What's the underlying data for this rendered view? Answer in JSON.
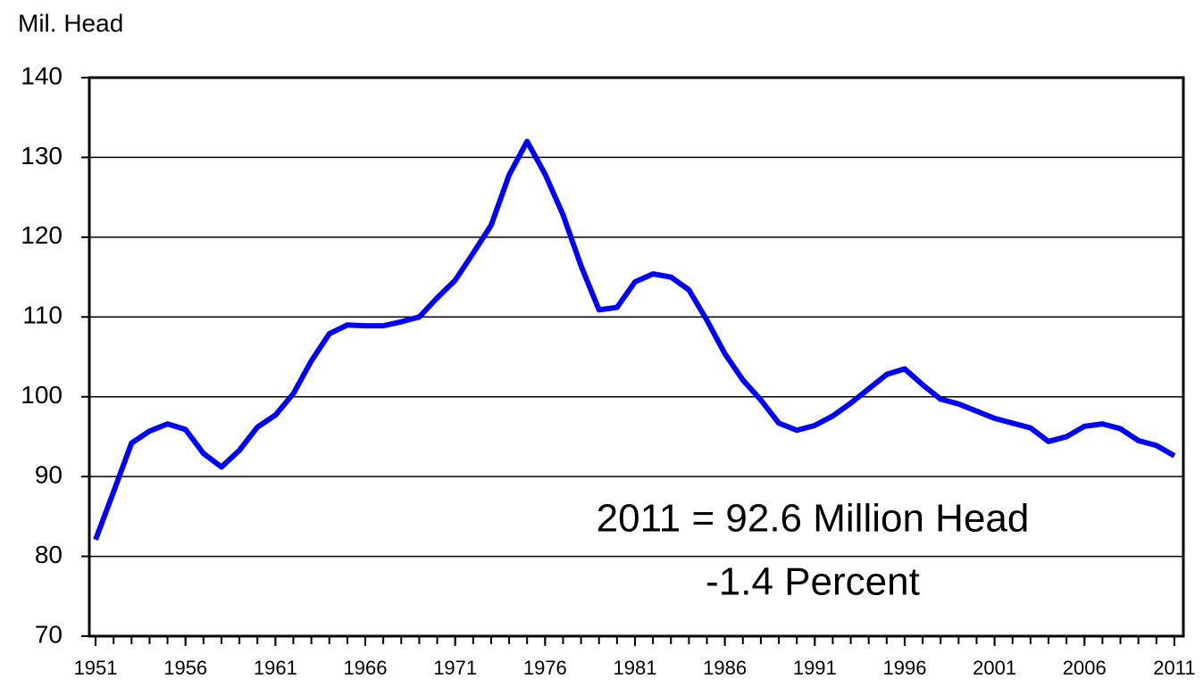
{
  "chart_data": {
    "type": "line",
    "y_label": "Mil. Head",
    "annotations": [
      "2011 = 92.6 Million Head",
      "-1.4 Percent"
    ],
    "x": [
      1951,
      1952,
      1953,
      1954,
      1955,
      1956,
      1957,
      1958,
      1959,
      1960,
      1961,
      1962,
      1963,
      1964,
      1965,
      1966,
      1967,
      1968,
      1969,
      1970,
      1971,
      1972,
      1973,
      1974,
      1975,
      1976,
      1977,
      1978,
      1979,
      1980,
      1981,
      1982,
      1983,
      1984,
      1985,
      1986,
      1987,
      1988,
      1989,
      1990,
      1991,
      1992,
      1993,
      1994,
      1995,
      1996,
      1997,
      1998,
      1999,
      2000,
      2001,
      2002,
      2003,
      2004,
      2005,
      2006,
      2007,
      2008,
      2009,
      2010,
      2011
    ],
    "series": [
      {
        "color": "#0000ff",
        "values": [
          82.1,
          88.1,
          94.2,
          95.7,
          96.6,
          95.9,
          92.9,
          91.2,
          93.3,
          96.2,
          97.7,
          100.4,
          104.5,
          107.9,
          109.0,
          108.9,
          108.9,
          109.4,
          110.0,
          112.4,
          114.6,
          118.0,
          121.5,
          127.8,
          132.0,
          127.9,
          122.8,
          116.4,
          110.9,
          111.2,
          114.4,
          115.4,
          115.0,
          113.4,
          109.6,
          105.4,
          102.1,
          99.6,
          96.7,
          95.8,
          96.4,
          97.6,
          99.2,
          101.0,
          102.8,
          103.5,
          101.5,
          99.7,
          99.1,
          98.2,
          97.3,
          96.7,
          96.1,
          94.4,
          95.0,
          96.3,
          96.6,
          96.0,
          94.5,
          93.9,
          92.6
        ]
      }
    ],
    "xlim": [
      1950.65,
      2011.5
    ],
    "xticks": [
      1951,
      1956,
      1961,
      1966,
      1971,
      1976,
      1981,
      1986,
      1991,
      1996,
      2001,
      2006,
      2011
    ],
    "ylim": [
      70,
      140
    ],
    "yticks": [
      70,
      80,
      90,
      100,
      110,
      120,
      130,
      140
    ],
    "grid": true
  }
}
